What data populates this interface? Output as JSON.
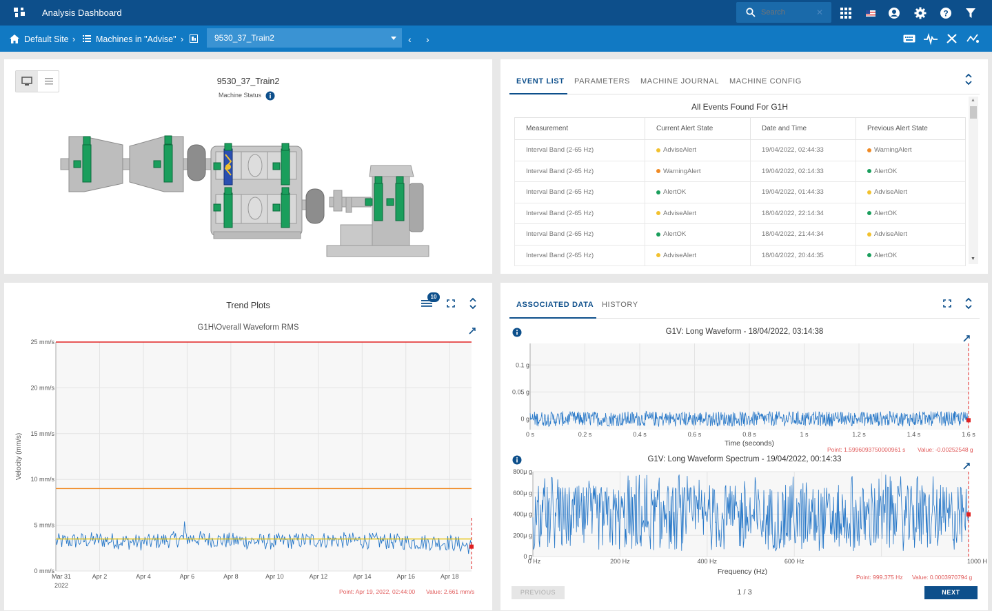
{
  "header": {
    "app_title": "Analysis Dashboard",
    "search_placeholder": "Search",
    "icons": [
      "grid-icon",
      "flag-icon",
      "user-icon",
      "gear-icon",
      "help-icon",
      "filter-icon"
    ]
  },
  "breadcrumb": {
    "site": "Default Site",
    "machines": "Machines in \"Advise\"",
    "selected_machine": "9530_37_Train2"
  },
  "machine_panel": {
    "title": "9530_37_Train2",
    "status_label": "Machine Status"
  },
  "event_panel": {
    "tabs": [
      "EVENT LIST",
      "PARAMETERS",
      "MACHINE JOURNAL",
      "MACHINE CONFIG"
    ],
    "heading": "All Events Found For G1H",
    "columns": [
      "Measurement",
      "Current Alert State",
      "Date and Time",
      "Previous Alert State"
    ],
    "rows": [
      {
        "measurement": "Interval Band (2-65 Hz)",
        "current": "AdviseAlert",
        "date": "19/04/2022, 02:44:33",
        "previous": "WarningAlert"
      },
      {
        "measurement": "Interval Band (2-65 Hz)",
        "current": "WarningAlert",
        "date": "19/04/2022, 02:14:33",
        "previous": "AlertOK"
      },
      {
        "measurement": "Interval Band (2-65 Hz)",
        "current": "AlertOK",
        "date": "19/04/2022, 01:44:33",
        "previous": "AdviseAlert"
      },
      {
        "measurement": "Interval Band (2-65 Hz)",
        "current": "AdviseAlert",
        "date": "18/04/2022, 22:14:34",
        "previous": "AlertOK"
      },
      {
        "measurement": "Interval Band (2-65 Hz)",
        "current": "AlertOK",
        "date": "18/04/2022, 21:44:34",
        "previous": "AdviseAlert"
      },
      {
        "measurement": "Interval Band (2-65 Hz)",
        "current": "AdviseAlert",
        "date": "18/04/2022, 20:44:35",
        "previous": "AlertOK"
      }
    ],
    "state_colors": {
      "AdviseAlert": "#f2c12e",
      "WarningAlert": "#f08a24",
      "AlertOK": "#1a9e5c"
    }
  },
  "trend_panel": {
    "title": "Trend Plots",
    "badge": "10",
    "subtitle": "G1H\\Overall Waveform RMS",
    "point_text": "Point: Apr 19, 2022, 02:44:00",
    "value_text": "Value: 2.661 mm/s"
  },
  "assoc_panel": {
    "tabs": [
      "ASSOCIATED DATA",
      "HISTORY"
    ],
    "waveform_title": "G1V: Long Waveform - 18/04/2022, 03:14:38",
    "waveform_point": "Point: 1.5996093750000961 s",
    "waveform_value": "Value: -0.00252548 g",
    "spectrum_title": "G1V: Long Waveform Spectrum - 19/04/2022, 00:14:33",
    "spectrum_point": "Point: 999.375 Hz",
    "spectrum_value": "Value: 0.0003970794 g",
    "prev_label": "PREVIOUS",
    "next_label": "NEXT",
    "pager": "1 / 3"
  },
  "chart_data": [
    {
      "type": "line",
      "title": "G1H\\Overall Waveform RMS",
      "ylabel": "Velocity (mm/s)",
      "xlabel": "",
      "x_ticks": [
        "Mar 31",
        "Apr 2",
        "Apr 4",
        "Apr 6",
        "Apr 8",
        "Apr 10",
        "Apr 12",
        "Apr 14",
        "Apr 16",
        "Apr 18"
      ],
      "x_year_label": "2022",
      "y_ticks": [
        "0 mm/s",
        "5 mm/s",
        "10 mm/s",
        "15 mm/s",
        "20 mm/s",
        "25 mm/s"
      ],
      "ylim": [
        0,
        25
      ],
      "xlim": [
        "2022-03-31",
        "2022-04-19"
      ],
      "thresholds": [
        {
          "value": 25,
          "color": "#e02020"
        },
        {
          "value": 9,
          "color": "#f08a24"
        }
      ],
      "series": [
        {
          "color": "#2878c8",
          "x": [
            "2022-03-31",
            "2022-04-02",
            "2022-04-04",
            "2022-04-06",
            "2022-04-08",
            "2022-04-10",
            "2022-04-12",
            "2022-04-14",
            "2022-04-16",
            "2022-04-18",
            "2022-04-19"
          ],
          "values": [
            3.2,
            3.4,
            3.1,
            3.6,
            3.3,
            3.2,
            3.4,
            3.3,
            3.2,
            3.1,
            2.661
          ]
        },
        {
          "color": "#e6c000",
          "x": [
            "2022-03-31",
            "2022-04-19"
          ],
          "values": [
            3.5,
            3.5
          ]
        }
      ],
      "grid": true
    },
    {
      "type": "line",
      "title": "G1V: Long Waveform - 18/04/2022, 03:14:38",
      "xlabel": "Time (seconds)",
      "ylabel": "",
      "x_ticks": [
        "0 s",
        "0.2 s",
        "0.4 s",
        "0.6 s",
        "0.8 s",
        "1 s",
        "1.2 s",
        "1.4 s",
        "1.6 s"
      ],
      "y_ticks": [
        "0 g",
        "0.05 g",
        "0.1 g"
      ],
      "xlim": [
        0,
        1.6
      ],
      "ylim": [
        -0.02,
        0.14
      ],
      "series": [
        {
          "color": "#2878c8",
          "x": [
            0,
            0.4,
            0.8,
            1.2,
            1.6
          ],
          "values": [
            0.0,
            0.01,
            -0.01,
            0.005,
            -0.00252548
          ]
        }
      ],
      "grid": true
    },
    {
      "type": "line",
      "title": "G1V: Long Waveform Spectrum - 19/04/2022, 00:14:33",
      "xlabel": "Frequency (Hz)",
      "ylabel": "",
      "x_ticks": [
        "0 Hz",
        "200 Hz",
        "400 Hz",
        "600 Hz",
        "1000 H"
      ],
      "y_ticks": [
        "0 g",
        "200μ g",
        "400μ g",
        "600μ g",
        "800μ g"
      ],
      "xlim": [
        0,
        1000
      ],
      "ylim": [
        0,
        0.0008
      ],
      "series": [
        {
          "color": "#2878c8",
          "x": [
            0,
            250,
            500,
            750,
            999.375
          ],
          "values": [
            0.0003,
            0.00035,
            0.0003,
            0.00032,
            0.0003970794
          ]
        }
      ],
      "grid": true
    }
  ]
}
